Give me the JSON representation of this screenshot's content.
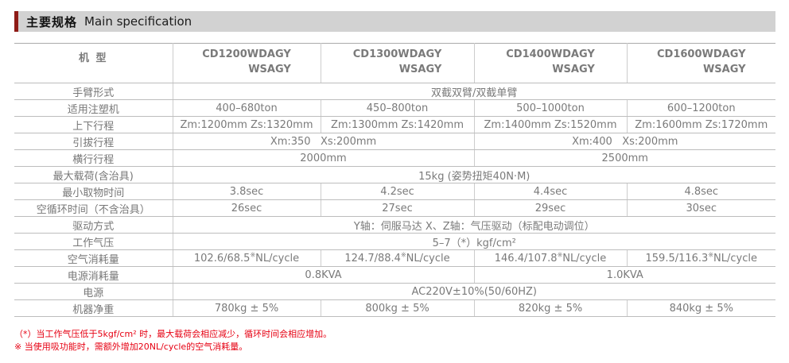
{
  "page": {
    "title_zh": "主要规格",
    "title_en": "Main specification"
  },
  "colors": {
    "accent_red": "#8e1b16",
    "title_bar_bg": "#d2d2d2",
    "highlight_red": "#e60012",
    "table_text_gray": "#7a7a7a"
  },
  "table": {
    "header": {
      "model_label": "机 型",
      "models": [
        {
          "line1": "CD1200WDAGY",
          "line2": "WSAGY"
        },
        {
          "line1": "CD1300WDAGY",
          "line2": "WSAGY"
        },
        {
          "line1": "CD1400WDAGY",
          "line2": "WSAGY"
        },
        {
          "line1": "CD1600WDAGY",
          "line2": "WSAGY"
        }
      ]
    },
    "rows": [
      {
        "label": "手臂形式",
        "cells": [
          {
            "text": "双截双臂/双截单臂",
            "span": 4
          }
        ]
      },
      {
        "label": "适用注塑机",
        "cells": [
          {
            "text": "400–680ton"
          },
          {
            "text": "450–800ton"
          },
          {
            "text": "500–1000ton"
          },
          {
            "text": "600–1200ton"
          }
        ]
      },
      {
        "label": "上下行程",
        "cells": [
          {
            "text": "Zm:1200mm Zs:1320mm"
          },
          {
            "text": "Zm:1300mm Zs:1420mm"
          },
          {
            "text": "Zm:1400mm Zs:1520mm"
          },
          {
            "text": "Zm:1600mm Zs:1720mm"
          }
        ]
      },
      {
        "label": "引拔行程",
        "cells": [
          {
            "text": "Xm:350   Xs:200mm",
            "span": 2
          },
          {
            "text": "Xm:400   Xs:200mm",
            "span": 2
          }
        ]
      },
      {
        "label": "横行行程",
        "cells": [
          {
            "text": "2000mm",
            "span": 2
          },
          {
            "text": "2500mm",
            "span": 2
          }
        ]
      },
      {
        "label": "最大载荷(含治具)",
        "cells": [
          {
            "text": "15kg (姿势扭矩40N·M)",
            "span": 4,
            "red": true
          }
        ]
      },
      {
        "label": "最小取物时间",
        "cells": [
          {
            "text": "3.8sec"
          },
          {
            "text": "4.2sec"
          },
          {
            "text": "4.4sec"
          },
          {
            "text": "4.8sec"
          }
        ]
      },
      {
        "label": "空循环时间（不含治具）",
        "cells": [
          {
            "text": "26sec"
          },
          {
            "text": "27sec"
          },
          {
            "text": "29sec"
          },
          {
            "text": "30sec"
          }
        ]
      },
      {
        "label": "驱动方式",
        "cells": [
          {
            "text": "Y轴：伺服马达 X、Z轴：气压驱动（标配电动调位）",
            "span": 4
          }
        ]
      },
      {
        "label": "工作气压",
        "cells": [
          {
            "text": "5–7（*）kgf/cm²",
            "span": 4,
            "red": true
          }
        ]
      },
      {
        "label": "空气消耗量",
        "cells": [
          {
            "text": "102.6/68.5※NL/cycle"
          },
          {
            "text": "124.7/88.4※NL/cycle"
          },
          {
            "text": "146.4/107.8※NL/cycle"
          },
          {
            "text": "159.5/116.3※NL/cycle"
          }
        ]
      },
      {
        "label": "电源消耗量",
        "cells": [
          {
            "text": "0.8KVA",
            "span": 2
          },
          {
            "text": "1.0KVA",
            "span": 2
          }
        ]
      },
      {
        "label": "电源",
        "cells": [
          {
            "text": "AC220V±10%(50/60HZ)",
            "span": 4
          }
        ]
      },
      {
        "label": "机器净重",
        "cells": [
          {
            "text": "780kg ± 5%"
          },
          {
            "text": "800kg ± 5%"
          },
          {
            "text": "820kg ± 5%"
          },
          {
            "text": "840kg ± 5%"
          }
        ]
      }
    ]
  },
  "footnotes": [
    "（*）当工作气压低于5kgf/cm² 时，最大载荷会相应减少，循环时间会相应增加。",
    "※ 当使用吸功能时，需额外增加20NL/cycle的空气消耗量。"
  ]
}
